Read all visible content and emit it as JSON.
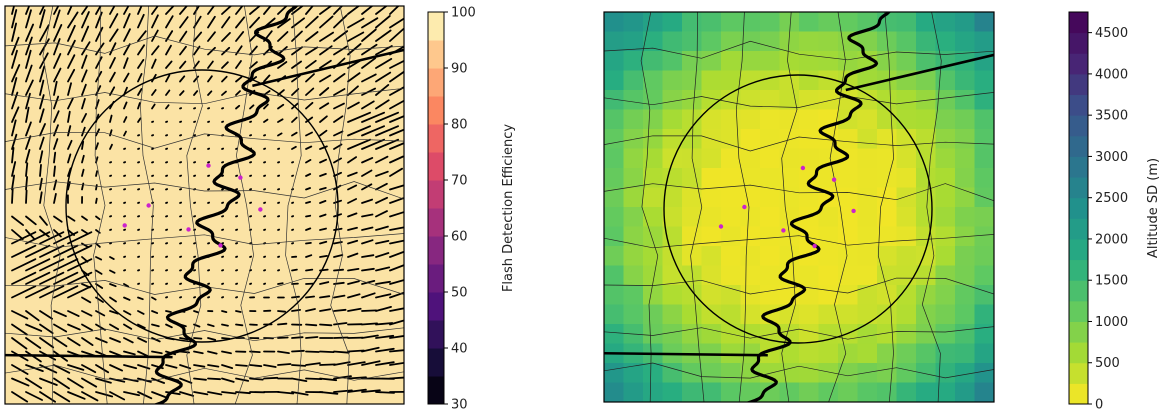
{
  "chart_data": [
    {
      "type": "heatmap",
      "title": "",
      "panel": "left",
      "description_map": "county map with state borders, a river, a circular network range and a quiver field of wind-like barbs",
      "station_count": 7,
      "colorbar": {
        "label": "Flash Detection Efficiency",
        "colormap": "magma",
        "range": [
          30,
          100
        ],
        "ticks": [
          30,
          40,
          50,
          60,
          70,
          80,
          90,
          100
        ],
        "tick_labels": [
          "30",
          "40",
          "50",
          "60",
          "70",
          "80",
          "90",
          "100"
        ],
        "bins": 14
      },
      "value_inside_range": 97,
      "value_outside_range": 97
    },
    {
      "type": "heatmap",
      "title": "",
      "panel": "right",
      "colorbar": {
        "label": "Altitude SD (m)",
        "colormap": "viridis_r",
        "range": [
          0,
          4750
        ],
        "ticks": [
          0,
          500,
          1000,
          1500,
          2000,
          2500,
          3000,
          3500,
          4000,
          4500
        ],
        "tick_labels": [
          "0",
          "500",
          "1000",
          "1500",
          "2000",
          "2500",
          "3000",
          "3500",
          "4000",
          "4500"
        ],
        "bins": 19
      },
      "value_center": 100,
      "value_edge_max": 3000
    }
  ],
  "colors": {
    "station_marker": "#cc22cc",
    "border": "#000000",
    "range_ring": "#000000"
  }
}
